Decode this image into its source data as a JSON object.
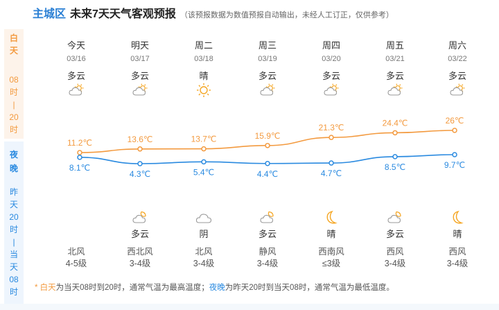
{
  "header": {
    "district": "主城区",
    "title": "未来7天天气客观预报",
    "note": "（该预报数据为数值预报自动输出，未经人工订正，仅供参考）"
  },
  "side": {
    "day_chars": [
      "白",
      "天",
      "08",
      "时",
      "|",
      "20",
      "时"
    ],
    "night_chars": [
      "夜",
      "晚",
      "昨",
      "天",
      "20",
      "时",
      "|",
      "当",
      "天",
      "08",
      "时"
    ]
  },
  "days": [
    {
      "name": "今天",
      "date": "03/16",
      "day_weather": "多云",
      "day_icon": "partly-cloudy-day-icon",
      "night_icon": "",
      "night_weather": "",
      "wind_dir": "北风",
      "wind_level": "4-5级"
    },
    {
      "name": "明天",
      "date": "03/17",
      "day_weather": "多云",
      "day_icon": "partly-cloudy-day-icon",
      "night_icon": "partly-cloudy-night-icon",
      "night_weather": "多云",
      "wind_dir": "西北风",
      "wind_level": "3-4级"
    },
    {
      "name": "周二",
      "date": "03/18",
      "day_weather": "晴",
      "day_icon": "sun-icon",
      "night_icon": "cloudy-icon",
      "night_weather": "阴",
      "wind_dir": "北风",
      "wind_level": "3-4级"
    },
    {
      "name": "周三",
      "date": "03/19",
      "day_weather": "多云",
      "day_icon": "partly-cloudy-day-icon",
      "night_icon": "partly-cloudy-night-icon",
      "night_weather": "多云",
      "wind_dir": "静风",
      "wind_level": "3-4级"
    },
    {
      "name": "周四",
      "date": "03/20",
      "day_weather": "多云",
      "day_icon": "partly-cloudy-day-icon",
      "night_icon": "moon-icon",
      "night_weather": "晴",
      "wind_dir": "西南风",
      "wind_level": "≤3级"
    },
    {
      "name": "周五",
      "date": "03/21",
      "day_weather": "多云",
      "day_icon": "partly-cloudy-day-icon",
      "night_icon": "partly-cloudy-night-icon",
      "night_weather": "多云",
      "wind_dir": "西风",
      "wind_level": "3-4级"
    },
    {
      "name": "周六",
      "date": "03/22",
      "day_weather": "多云",
      "day_icon": "partly-cloudy-day-icon",
      "night_icon": "moon-icon",
      "night_weather": "晴",
      "wind_dir": "西风",
      "wind_level": "3-4级"
    }
  ],
  "chart_data": {
    "type": "line",
    "categories": [
      "03/16",
      "03/17",
      "03/18",
      "03/19",
      "03/20",
      "03/21",
      "03/22"
    ],
    "series": [
      {
        "values": [
          11.2,
          13.6,
          13.7,
          15.9,
          21.3,
          24.4,
          26
        ],
        "labels": [
          "11.2℃",
          "13.6℃",
          "13.7℃",
          "15.9℃",
          "21.3℃",
          "24.4℃",
          "26℃"
        ],
        "color": "#f39a3f"
      },
      {
        "values": [
          8.1,
          4.3,
          5.4,
          4.4,
          4.7,
          8.5,
          9.7
        ],
        "labels": [
          "8.1℃",
          "4.3℃",
          "5.4℃",
          "4.4℃",
          "4.7℃",
          "8.5℃",
          "9.7℃"
        ],
        "color": "#2a8ae0"
      }
    ]
  },
  "legend": {
    "star": "* ",
    "day_word": "白天",
    "day_text": "为当天08时到20时，通常气温为最高温度；",
    "night_word": "夜晚",
    "night_text": "为昨天20时到当天08时，通常气温为最低温度。"
  }
}
